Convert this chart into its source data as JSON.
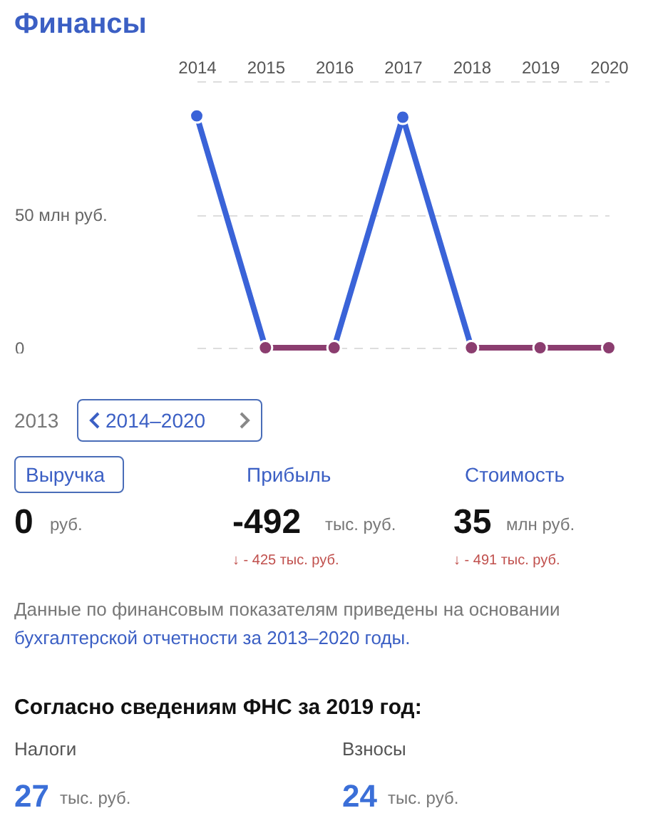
{
  "chart_data": {
    "type": "line",
    "title": "Финансы",
    "categories": [
      "2014",
      "2015",
      "2016",
      "2017",
      "2018",
      "2019",
      "2020"
    ],
    "series": [
      {
        "color": "#3a63d8",
        "values": [
          87,
          0,
          0,
          86.5,
          0,
          null,
          null
        ]
      },
      {
        "color": "#8b3d6f",
        "values": [
          null,
          0,
          0,
          null,
          0,
          0,
          0
        ]
      }
    ],
    "ylim": [
      0,
      100
    ],
    "yticks": [
      0,
      {
        "value": 50,
        "label": "50 млн руб."
      },
      {
        "value": 100,
        "label": null
      }
    ],
    "grid": "y",
    "marker": "circle",
    "line_style": "solid",
    "annotations": [
      "2013",
      "2014–2020",
      "Выручка",
      "Прибыль",
      "Стоимость",
      "0",
      "руб.",
      "-492",
      "тыс. руб.",
      "35",
      "млн руб.",
      "↓ - 425 тыс. руб.",
      "↓ - 491 тыс. руб.",
      "Данные по финансовым показателям приведены на основании",
      "бухгалтерской отчетности за 2013–2020 годы.",
      "Согласно сведениям ФНС за 2019 год:",
      "Налоги",
      "Взносы",
      "27",
      "тыс. руб.",
      "24",
      "тыс. руб."
    ]
  }
}
